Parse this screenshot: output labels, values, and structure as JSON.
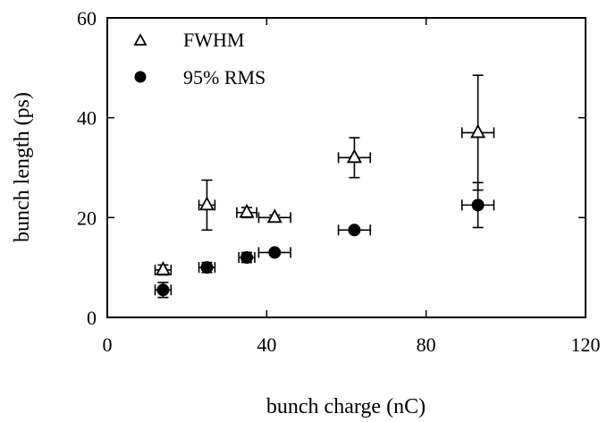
{
  "chart_data": {
    "type": "scatter",
    "title": "",
    "xlabel": "bunch charge (nC)",
    "ylabel": "bunch length (ps)",
    "xlim": [
      0,
      120
    ],
    "ylim": [
      0,
      60
    ],
    "xticks": [
      "0",
      "40",
      "80",
      "120"
    ],
    "yticks": [
      "0",
      "20",
      "40",
      "60"
    ],
    "grid": false,
    "legend": "top-left",
    "series": [
      {
        "name": "FWHM",
        "marker": "open-triangle",
        "color": "#000000",
        "points": [
          {
            "x": 14,
            "y": 9.5,
            "xerr": 2,
            "yerr": 1
          },
          {
            "x": 25,
            "y": 22.5,
            "xerr": 2,
            "yerr": 5
          },
          {
            "x": 35,
            "y": 21,
            "xerr": 2.5,
            "yerr": 1
          },
          {
            "x": 42,
            "y": 20,
            "xerr": 4,
            "yerr": 0.5
          },
          {
            "x": 62,
            "y": 32,
            "xerr": 4,
            "yerr": 4
          },
          {
            "x": 93,
            "y": 37,
            "xerr": 4,
            "yerr": 11.5
          }
        ]
      },
      {
        "name": "95% RMS",
        "marker": "filled-circle",
        "color": "#000000",
        "points": [
          {
            "x": 14,
            "y": 5.5,
            "xerr": 2,
            "yerr": 1.5
          },
          {
            "x": 25,
            "y": 10,
            "xerr": 2,
            "yerr": 1
          },
          {
            "x": 35,
            "y": 12,
            "xerr": 2,
            "yerr": 1
          },
          {
            "x": 42,
            "y": 13,
            "xerr": 4,
            "yerr": 0.5
          },
          {
            "x": 62,
            "y": 17.5,
            "xerr": 4,
            "yerr": 0.5
          },
          {
            "x": 93,
            "y": 22.5,
            "xerr": 4,
            "yerr": 4.5
          }
        ]
      }
    ]
  }
}
